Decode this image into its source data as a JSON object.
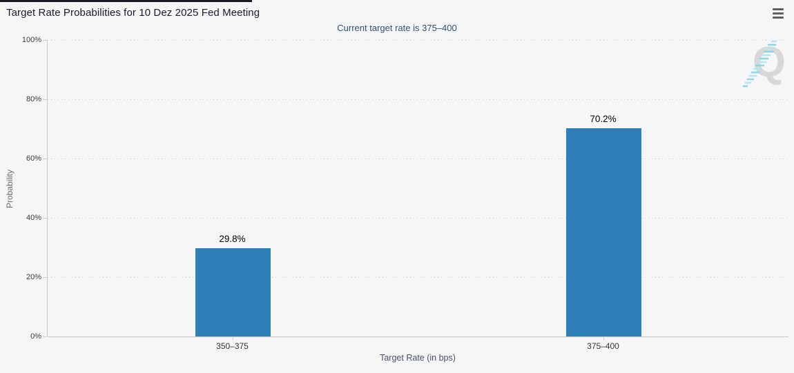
{
  "header": {
    "title": "Target Rate Probabilities for 10 Dez 2025 Fed Meeting",
    "menu_icon": "hamburger-icon"
  },
  "subtitle": "Current target rate is 375–400",
  "watermark": {
    "letter": "Q"
  },
  "colors": {
    "bar": "#2e7fb8",
    "title_text": "#1a1a2e",
    "subtitle_text": "#2d4e77",
    "background": "#f6f6f7",
    "top_accent": "#1b1b26",
    "watermark_gray": "#d8d8d8",
    "watermark_teal": "#8ed6e6"
  },
  "chart_data": {
    "type": "bar",
    "title": "Target Rate Probabilities for 10 Dez 2025 Fed Meeting",
    "subtitle": "Current target rate is 375–400",
    "categories": [
      "350–375",
      "375–400"
    ],
    "values": [
      29.8,
      70.2
    ],
    "value_labels": [
      "29.8%",
      "70.2%"
    ],
    "xlabel": "Target Rate (in bps)",
    "ylabel": "Probability",
    "ylim": [
      0,
      100
    ],
    "yticks": [
      0,
      20,
      40,
      60,
      80,
      100
    ],
    "ytick_labels": [
      "0%",
      "20%",
      "40%",
      "60%",
      "80%",
      "100%"
    ],
    "grid": "dotted horizontal gridlines, solid baseline",
    "legend": "none",
    "bar_color": "#2e7fb8"
  }
}
